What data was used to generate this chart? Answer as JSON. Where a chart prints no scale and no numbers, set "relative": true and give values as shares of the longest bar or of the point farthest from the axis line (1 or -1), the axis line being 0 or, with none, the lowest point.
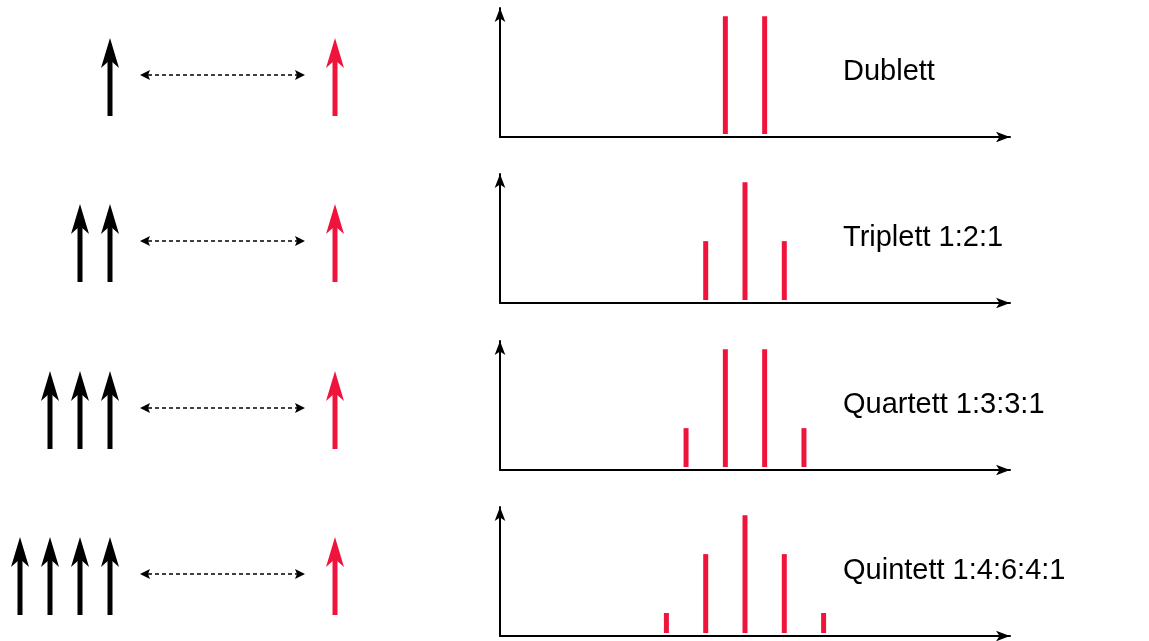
{
  "chart_data": [
    {
      "type": "bar",
      "annotations": [
        "Dublett"
      ],
      "relative": true,
      "color": "#f0143c",
      "categories": [
        null,
        null
      ],
      "values": [
        1,
        1
      ]
    },
    {
      "type": "bar",
      "annotations": [
        "Triplett 1:2:1"
      ],
      "relative": true,
      "color": "#f0143c",
      "categories": [
        null,
        null,
        null
      ],
      "values": [
        0.5,
        1,
        0.5
      ]
    },
    {
      "type": "bar",
      "annotations": [
        "Quartett 1:3:3:1"
      ],
      "relative": true,
      "color": "#f0143c",
      "categories": [
        null,
        null,
        null,
        null
      ],
      "values": [
        0.33,
        1,
        1,
        0.33
      ]
    },
    {
      "type": "bar",
      "annotations": [
        "Quintett 1:4:6:4:1"
      ],
      "relative": true,
      "color": "#f0143c",
      "categories": [
        null,
        null,
        null,
        null,
        null
      ],
      "values": [
        0.17,
        0.67,
        1,
        0.67,
        0.17
      ]
    }
  ]
}
